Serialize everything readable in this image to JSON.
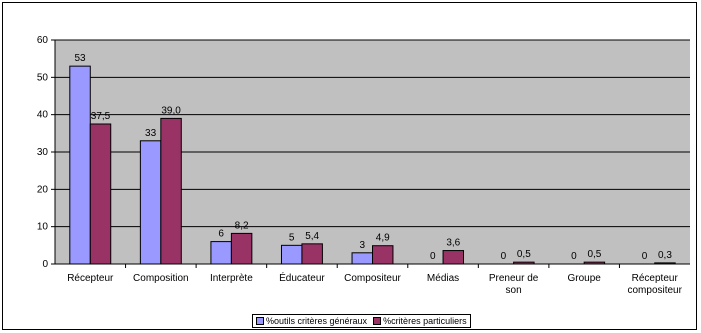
{
  "chart_data": {
    "type": "bar",
    "categories": [
      [
        "Récepteur"
      ],
      [
        "Composition"
      ],
      [
        "Interprète"
      ],
      [
        "Éducateur"
      ],
      [
        "Compositeur"
      ],
      [
        "Médias"
      ],
      [
        "Preneur de",
        "son"
      ],
      [
        "Groupe"
      ],
      [
        "Récepteur",
        "compositeur"
      ]
    ],
    "series": [
      {
        "name": "%outils critères généraux",
        "color": "#9999ff",
        "values": [
          53,
          33,
          6,
          5,
          3,
          0,
          0,
          0,
          0
        ],
        "labels": [
          "53",
          "33",
          "6",
          "5",
          "3",
          "0",
          "0",
          "0",
          "0"
        ]
      },
      {
        "name": "%critères particuliers",
        "color": "#993366",
        "values": [
          37.5,
          39.0,
          8.2,
          5.4,
          4.9,
          3.6,
          0.5,
          0.5,
          0.3
        ],
        "labels": [
          "37,5",
          "39,0",
          "8,2",
          "5,4",
          "4,9",
          "3,6",
          "0,5",
          "0,5",
          "0,3"
        ]
      }
    ],
    "ylim": [
      0,
      60
    ],
    "yticks": [
      0,
      10,
      20,
      30,
      40,
      50,
      60
    ],
    "grid": true,
    "plot_background": "#c0c0c0",
    "legend_position": "bottom",
    "title": "",
    "xlabel": "",
    "ylabel": ""
  }
}
